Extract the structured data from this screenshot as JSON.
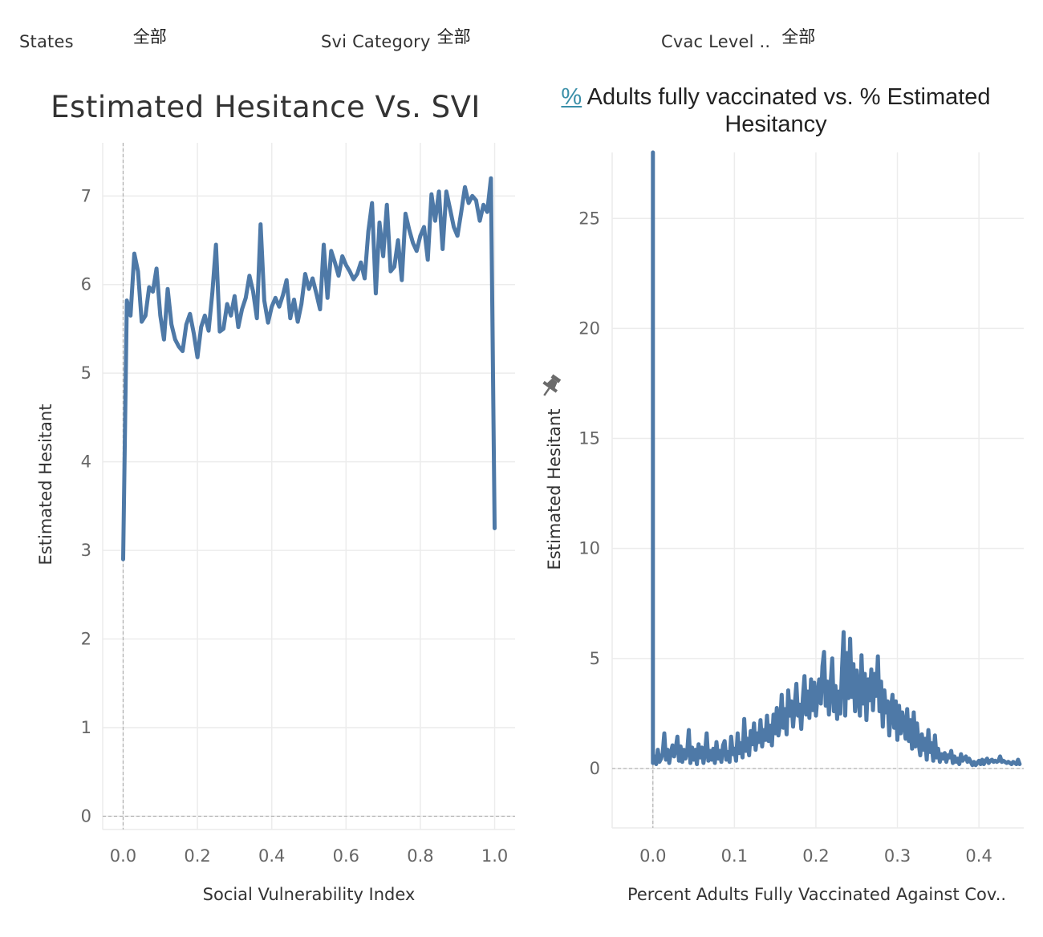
{
  "filters": [
    {
      "label": "States",
      "value": "全部"
    },
    {
      "label": "Svi Category",
      "value": "全部"
    },
    {
      "label": "Cvac Level ..",
      "value": "全部"
    }
  ],
  "left_title": "Estimated Hesitance Vs. SVI",
  "right_title": {
    "link": "%",
    "rest": " Adults fully vaccinated vs. % Estimated Hesitancy"
  },
  "colors": {
    "series": "#4e79a7",
    "link": "#3a8fa8"
  },
  "icons": {
    "pin": "pin-icon"
  },
  "chart_data": [
    {
      "type": "line",
      "title": "Estimated Hesitance Vs. SVI",
      "xlabel": "Social Vulnerability Index",
      "ylabel": "Estimated Hesitant",
      "xlim": [
        -0.055,
        1.055
      ],
      "ylim": [
        -0.15,
        7.6
      ],
      "xticks": [
        0.0,
        0.2,
        0.4,
        0.6,
        0.8,
        1.0
      ],
      "xtick_labels": [
        "0.0",
        "0.2",
        "0.4",
        "0.6",
        "0.8",
        "1.0"
      ],
      "yticks": [
        0,
        1,
        2,
        3,
        4,
        5,
        6,
        7
      ],
      "ytick_labels": [
        "0",
        "1",
        "2",
        "3",
        "4",
        "5",
        "6",
        "7"
      ],
      "grid": true,
      "x": [
        0.0,
        0.01,
        0.02,
        0.03,
        0.04,
        0.05,
        0.06,
        0.07,
        0.08,
        0.09,
        0.1,
        0.11,
        0.12,
        0.13,
        0.14,
        0.15,
        0.16,
        0.17,
        0.18,
        0.19,
        0.2,
        0.21,
        0.22,
        0.23,
        0.24,
        0.25,
        0.26,
        0.27,
        0.28,
        0.29,
        0.3,
        0.31,
        0.32,
        0.33,
        0.34,
        0.35,
        0.36,
        0.37,
        0.38,
        0.39,
        0.4,
        0.41,
        0.42,
        0.43,
        0.44,
        0.45,
        0.46,
        0.47,
        0.48,
        0.49,
        0.5,
        0.51,
        0.52,
        0.53,
        0.54,
        0.55,
        0.56,
        0.57,
        0.58,
        0.59,
        0.6,
        0.61,
        0.62,
        0.63,
        0.64,
        0.65,
        0.66,
        0.67,
        0.68,
        0.69,
        0.7,
        0.71,
        0.72,
        0.73,
        0.74,
        0.75,
        0.76,
        0.77,
        0.78,
        0.79,
        0.8,
        0.81,
        0.82,
        0.83,
        0.84,
        0.85,
        0.86,
        0.87,
        0.88,
        0.89,
        0.9,
        0.91,
        0.92,
        0.93,
        0.94,
        0.95,
        0.96,
        0.97,
        0.98,
        0.99,
        1.0
      ],
      "series": [
        {
          "values": [
            2.9,
            5.82,
            5.65,
            6.35,
            6.15,
            5.58,
            5.65,
            5.97,
            5.92,
            6.18,
            5.65,
            5.38,
            5.95,
            5.55,
            5.38,
            5.3,
            5.25,
            5.55,
            5.67,
            5.45,
            5.18,
            5.52,
            5.65,
            5.48,
            5.9,
            6.45,
            5.47,
            5.5,
            5.78,
            5.65,
            5.87,
            5.52,
            5.72,
            5.85,
            6.1,
            5.92,
            5.62,
            6.68,
            5.82,
            5.57,
            5.75,
            5.85,
            5.75,
            5.88,
            6.05,
            5.62,
            5.83,
            5.58,
            5.78,
            6.12,
            5.95,
            6.07,
            5.9,
            5.72,
            6.45,
            5.85,
            6.38,
            6.25,
            6.1,
            6.32,
            6.22,
            6.15,
            6.06,
            6.12,
            6.25,
            6.07,
            6.6,
            6.92,
            5.9,
            6.7,
            6.32,
            6.9,
            6.15,
            6.2,
            6.5,
            6.05,
            6.8,
            6.62,
            6.47,
            6.38,
            6.55,
            6.65,
            6.28,
            7.02,
            6.72,
            7.05,
            6.4,
            7.05,
            6.85,
            6.65,
            6.55,
            6.82,
            7.1,
            6.92,
            7.0,
            6.95,
            6.72,
            6.9,
            6.82,
            7.2,
            3.25
          ]
        }
      ]
    },
    {
      "type": "line",
      "title": "% Adults fully vaccinated vs. % Estimated Hesitancy",
      "xlabel": "Percent Adults Fully Vaccinated Against Cov..",
      "ylabel": "Estimated Hesitant",
      "xlim": [
        -0.05,
        0.455
      ],
      "ylim": [
        -2.7,
        28.0
      ],
      "xticks": [
        0.0,
        0.1,
        0.2,
        0.3,
        0.4
      ],
      "xtick_labels": [
        "0.0",
        "0.1",
        "0.2",
        "0.3",
        "0.4"
      ],
      "yticks": [
        0,
        5,
        10,
        15,
        20,
        25
      ],
      "ytick_labels": [
        "0",
        "5",
        "10",
        "15",
        "20",
        "25"
      ],
      "grid": true,
      "x": [
        0.0,
        0.0,
        0.002,
        0.004,
        0.006,
        0.008,
        0.01,
        0.012,
        0.014,
        0.016,
        0.018,
        0.02,
        0.022,
        0.024,
        0.026,
        0.028,
        0.03,
        0.032,
        0.034,
        0.036,
        0.038,
        0.04,
        0.042,
        0.044,
        0.046,
        0.048,
        0.05,
        0.052,
        0.054,
        0.056,
        0.058,
        0.06,
        0.062,
        0.064,
        0.066,
        0.068,
        0.07,
        0.072,
        0.074,
        0.076,
        0.078,
        0.08,
        0.082,
        0.084,
        0.086,
        0.088,
        0.09,
        0.092,
        0.094,
        0.096,
        0.098,
        0.1,
        0.102,
        0.104,
        0.106,
        0.108,
        0.11,
        0.112,
        0.114,
        0.116,
        0.118,
        0.12,
        0.122,
        0.124,
        0.126,
        0.128,
        0.13,
        0.132,
        0.134,
        0.136,
        0.138,
        0.14,
        0.142,
        0.144,
        0.146,
        0.148,
        0.15,
        0.152,
        0.154,
        0.156,
        0.158,
        0.16,
        0.162,
        0.164,
        0.166,
        0.168,
        0.17,
        0.172,
        0.174,
        0.176,
        0.178,
        0.18,
        0.182,
        0.184,
        0.186,
        0.188,
        0.19,
        0.192,
        0.194,
        0.196,
        0.198,
        0.2,
        0.202,
        0.204,
        0.206,
        0.208,
        0.21,
        0.212,
        0.214,
        0.216,
        0.218,
        0.22,
        0.222,
        0.224,
        0.226,
        0.228,
        0.23,
        0.232,
        0.234,
        0.236,
        0.238,
        0.24,
        0.242,
        0.244,
        0.246,
        0.248,
        0.25,
        0.252,
        0.254,
        0.256,
        0.258,
        0.26,
        0.262,
        0.264,
        0.266,
        0.268,
        0.27,
        0.272,
        0.274,
        0.276,
        0.278,
        0.28,
        0.282,
        0.284,
        0.286,
        0.288,
        0.29,
        0.292,
        0.294,
        0.296,
        0.298,
        0.3,
        0.302,
        0.304,
        0.306,
        0.308,
        0.31,
        0.312,
        0.314,
        0.316,
        0.318,
        0.32,
        0.322,
        0.324,
        0.326,
        0.328,
        0.33,
        0.332,
        0.334,
        0.336,
        0.338,
        0.34,
        0.342,
        0.344,
        0.346,
        0.348,
        0.35,
        0.352,
        0.354,
        0.356,
        0.358,
        0.36,
        0.362,
        0.364,
        0.366,
        0.368,
        0.37,
        0.372,
        0.374,
        0.376,
        0.378,
        0.38,
        0.382,
        0.384,
        0.386,
        0.388,
        0.39,
        0.392,
        0.394,
        0.396,
        0.398,
        0.4,
        0.402,
        0.404,
        0.406,
        0.408,
        0.41,
        0.412,
        0.414,
        0.416,
        0.418,
        0.42,
        0.422,
        0.424,
        0.426,
        0.428,
        0.43,
        0.432,
        0.434,
        0.436,
        0.438,
        0.44,
        0.442,
        0.444,
        0.446,
        0.448,
        0.45
      ],
      "series": [
        {
          "values": [
            28.0,
            0.25,
            0.55,
            0.2,
            0.85,
            0.3,
            0.45,
            0.7,
            1.6,
            0.4,
            0.85,
            0.25,
            0.7,
            1.05,
            0.55,
            0.9,
            1.45,
            0.35,
            1.0,
            0.3,
            0.85,
            0.45,
            0.75,
            1.75,
            0.25,
            0.95,
            0.4,
            0.85,
            0.2,
            1.1,
            0.5,
            0.95,
            0.25,
            0.75,
            1.6,
            0.35,
            0.8,
            0.4,
            0.9,
            0.25,
            1.2,
            0.45,
            0.8,
            0.3,
            1.05,
            1.25,
            0.4,
            0.75,
            0.3,
            1.45,
            0.65,
            0.9,
            0.35,
            1.6,
            0.7,
            1.15,
            0.5,
            2.25,
            0.8,
            1.35,
            0.6,
            1.7,
            1.1,
            2.05,
            0.85,
            1.6,
            1.2,
            2.2,
            1.0,
            1.75,
            1.3,
            2.4,
            1.25,
            1.95,
            1.05,
            2.45,
            1.6,
            2.75,
            1.5,
            2.0,
            3.35,
            1.85,
            2.7,
            1.55,
            3.55,
            2.4,
            3.05,
            1.9,
            2.85,
            3.85,
            2.4,
            2.9,
            1.8,
            3.2,
            4.2,
            2.45,
            3.5,
            2.3,
            4.05,
            2.65,
            3.9,
            2.4,
            3.35,
            4.05,
            2.95,
            4.65,
            5.3,
            2.85,
            3.95,
            2.45,
            3.8,
            5.0,
            2.6,
            3.75,
            2.25,
            3.5,
            2.5,
            4.55,
            6.2,
            2.4,
            5.25,
            3.2,
            5.9,
            3.25,
            4.75,
            2.6,
            4.45,
            3.25,
            2.4,
            5.15,
            2.95,
            4.3,
            2.2,
            4.05,
            3.1,
            4.5,
            2.65,
            4.3,
            3.3,
            5.1,
            2.6,
            3.95,
            1.9,
            3.55,
            2.55,
            3.05,
            1.5,
            2.7,
            3.35,
            1.85,
            3.05,
            1.3,
            2.85,
            1.6,
            2.55,
            2.05,
            1.35,
            2.7,
            1.25,
            2.2,
            0.9,
            2.55,
            1.0,
            2.05,
            1.15,
            0.6,
            1.55,
            0.85,
            1.35,
            0.4,
            1.75,
            0.75,
            1.15,
            0.35,
            1.5,
            0.5,
            0.9,
            0.3,
            0.65,
            0.45,
            0.7,
            0.3,
            0.6,
            0.5,
            0.8,
            0.25,
            0.55,
            0.3,
            0.45,
            0.2,
            0.65,
            0.35,
            0.45,
            0.55,
            0.3,
            0.45,
            0.3,
            0.15,
            0.3,
            0.15,
            0.25,
            0.35,
            0.2,
            0.4,
            0.2,
            0.35,
            0.45,
            0.25,
            0.35,
            0.4,
            0.3,
            0.35,
            0.3,
            0.35,
            0.55,
            0.3,
            0.35,
            0.3,
            0.25,
            0.3,
            0.25,
            0.2,
            0.3,
            0.25,
            0.2,
            0.4,
            0.2
          ]
        }
      ]
    }
  ]
}
